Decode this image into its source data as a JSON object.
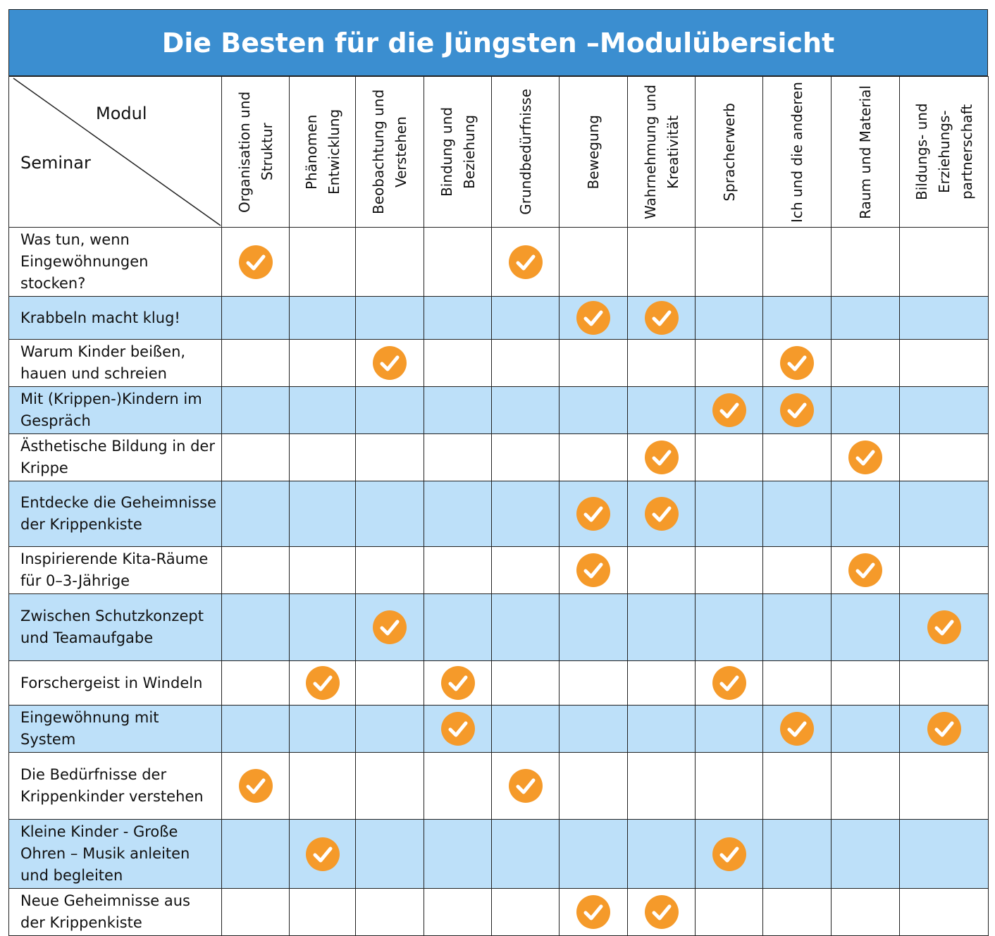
{
  "title": "Die Besten für die Jüngsten –Modulübersicht",
  "corner": {
    "modul_label": "Modul",
    "seminar_label": "Seminar"
  },
  "colors": {
    "header_blue": "#3b8ed0",
    "row_alt": "#bde0f9",
    "check_orange": "#f59a2a"
  },
  "modules": [
    "Organisation und Struktur",
    "Phänomen Entwicklung",
    "Beobachtung und Verstehen",
    "Bindung und Beziehung",
    "Grundbedürfnisse",
    "Bewegung",
    "Wahrnehmung und Kreativität",
    "Spracherwerb",
    "Ich und die anderen",
    "Raum und Material",
    "Bildungs- und Erziehungs- partnerschaft"
  ],
  "rows": [
    {
      "seminar": "Was tun, wenn Eingewöhnungen stocken?",
      "checks": [
        1,
        0,
        0,
        0,
        1,
        0,
        0,
        0,
        0,
        0,
        0
      ]
    },
    {
      "seminar": "Krabbeln macht klug!",
      "checks": [
        0,
        0,
        0,
        0,
        0,
        1,
        1,
        0,
        0,
        0,
        0
      ]
    },
    {
      "seminar": "Warum Kinder beißen, hauen und schreien",
      "checks": [
        0,
        0,
        1,
        0,
        0,
        0,
        0,
        0,
        1,
        0,
        0
      ]
    },
    {
      "seminar": "Mit (Krippen-)Kindern im Gespräch",
      "checks": [
        0,
        0,
        0,
        0,
        0,
        0,
        0,
        1,
        1,
        0,
        0
      ]
    },
    {
      "seminar": "Ästhetische Bildung in der Krippe",
      "checks": [
        0,
        0,
        0,
        0,
        0,
        0,
        1,
        0,
        0,
        1,
        0
      ]
    },
    {
      "seminar": "Entdecke die Geheimnisse der Krippenkiste",
      "checks": [
        0,
        0,
        0,
        0,
        0,
        1,
        1,
        0,
        0,
        0,
        0
      ]
    },
    {
      "seminar": "Inspirierende Kita-Räume für 0–3-Jährige",
      "checks": [
        0,
        0,
        0,
        0,
        0,
        1,
        0,
        0,
        0,
        1,
        0
      ]
    },
    {
      "seminar": "Zwischen Schutzkonzept und Teamaufgabe",
      "checks": [
        0,
        0,
        1,
        0,
        0,
        0,
        0,
        0,
        0,
        0,
        1
      ]
    },
    {
      "seminar": "Forschergeist in Windeln",
      "checks": [
        0,
        1,
        0,
        1,
        0,
        0,
        0,
        1,
        0,
        0,
        0
      ]
    },
    {
      "seminar": "Eingewöhnung mit System",
      "checks": [
        0,
        0,
        0,
        1,
        0,
        0,
        0,
        0,
        1,
        0,
        1
      ]
    },
    {
      "seminar": "Die Bedürfnisse der Krippenkinder verstehen",
      "checks": [
        1,
        0,
        0,
        0,
        1,
        0,
        0,
        0,
        0,
        0,
        0
      ]
    },
    {
      "seminar": "Kleine Kinder - Große Ohren – Musik anleiten und begleiten",
      "checks": [
        0,
        1,
        0,
        0,
        0,
        0,
        0,
        1,
        0,
        0,
        0
      ]
    },
    {
      "seminar": "Neue Geheimnisse aus der Krippenkiste",
      "checks": [
        0,
        0,
        0,
        0,
        0,
        1,
        1,
        0,
        0,
        0,
        0
      ]
    }
  ]
}
